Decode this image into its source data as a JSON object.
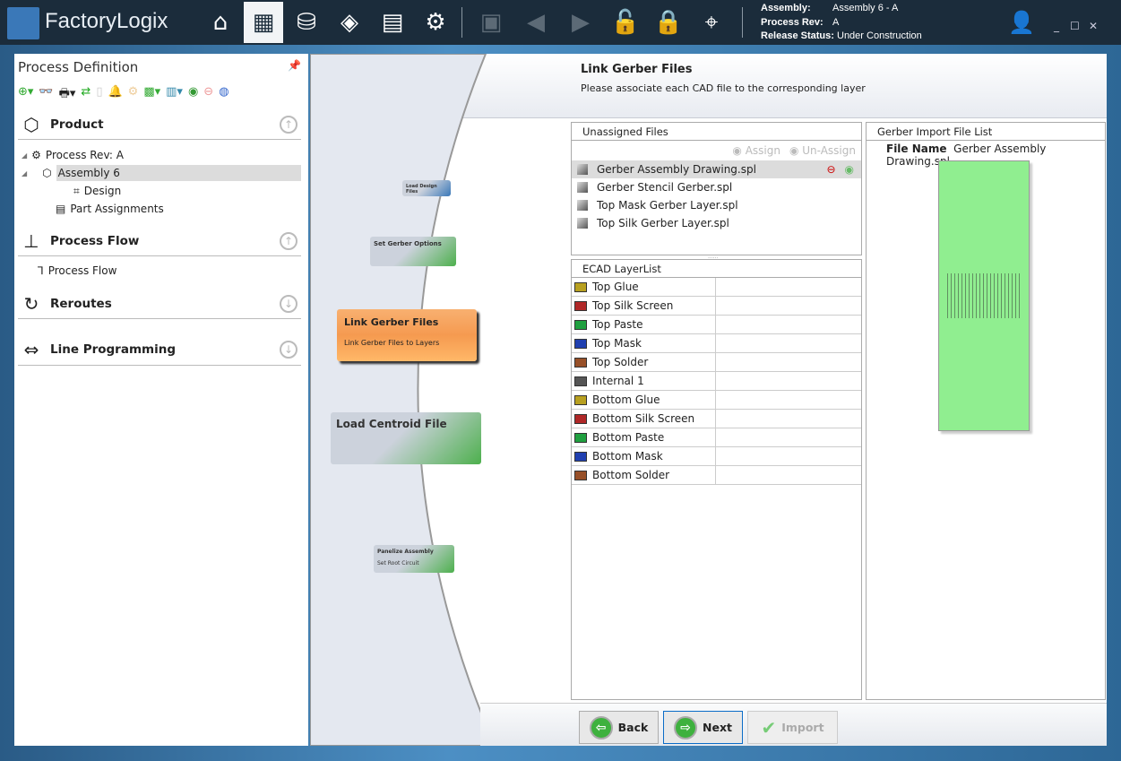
{
  "app": {
    "name": "FactoryLogix"
  },
  "toolbar": {
    "icons": [
      "home-icon",
      "process-definition-icon",
      "database-icon",
      "navigate-icon",
      "forms-icon",
      "settings-icon",
      "save-icon",
      "back-icon",
      "forward-icon",
      "unlock-icon",
      "lock-icon",
      "search-tree-icon"
    ]
  },
  "context": {
    "assembly_label": "Assembly:",
    "assembly": "Assembly  6 - A",
    "rev_label": "Process Rev:",
    "rev": "A",
    "status_label": "Release Status:",
    "status": "Under Construction"
  },
  "window": {
    "min": "_",
    "max": "☐",
    "close": "✕"
  },
  "left": {
    "title": "Process Definition",
    "sections": [
      {
        "label": "Product"
      },
      {
        "label": "Process Flow"
      },
      {
        "label": "Reroutes"
      },
      {
        "label": "Line Programming"
      }
    ],
    "tree": {
      "rev": "Process Rev: A",
      "assembly": "Assembly  6",
      "design": "Design",
      "parts": "Part Assignments",
      "flow": "Process Flow"
    }
  },
  "wizard": {
    "title": "Link Gerber Files",
    "subtitle": "Please associate each CAD file to the corresponding layer",
    "steps": [
      {
        "title": "Load Design Files"
      },
      {
        "title": "Set Gerber Options"
      },
      {
        "title": "Link Gerber Files",
        "desc": "Link Gerber Files to Layers"
      },
      {
        "title": "Load Centroid File"
      },
      {
        "title": "Panelize Assembly",
        "desc": "Set Root Circuit"
      }
    ]
  },
  "unassigned": {
    "header": "Unassigned Files",
    "assign": "Assign",
    "unassign": "Un-Assign",
    "files": [
      "Gerber Assembly Drawing.spl",
      "Gerber Stencil Gerber.spl",
      "Top Mask Gerber Layer.spl",
      "Top Silk Gerber Layer.spl"
    ],
    "selected": 0
  },
  "layers": {
    "header": "ECAD LayerList",
    "items": [
      {
        "name": "Top Glue",
        "color": "#b8a020"
      },
      {
        "name": "Top Silk Screen",
        "color": "#b02828"
      },
      {
        "name": "Top Paste",
        "color": "#20a040"
      },
      {
        "name": "Top Mask",
        "color": "#2040b0"
      },
      {
        "name": "Top Solder",
        "color": "#985028"
      },
      {
        "name": "Internal 1",
        "color": "#555555"
      },
      {
        "name": "Bottom Glue",
        "color": "#b8a020"
      },
      {
        "name": "Bottom Silk Screen",
        "color": "#b02828"
      },
      {
        "name": "Bottom Paste",
        "color": "#20a040"
      },
      {
        "name": "Bottom Mask",
        "color": "#2040b0"
      },
      {
        "name": "Bottom Solder",
        "color": "#985028"
      }
    ]
  },
  "gerber": {
    "header": "Gerber Import File List",
    "file_label": "File Name",
    "file": "Gerber Assembly Drawing.spl",
    "preview_color": "#90ee90"
  },
  "buttons": {
    "back": "Back",
    "next": "Next",
    "import": "Import"
  }
}
